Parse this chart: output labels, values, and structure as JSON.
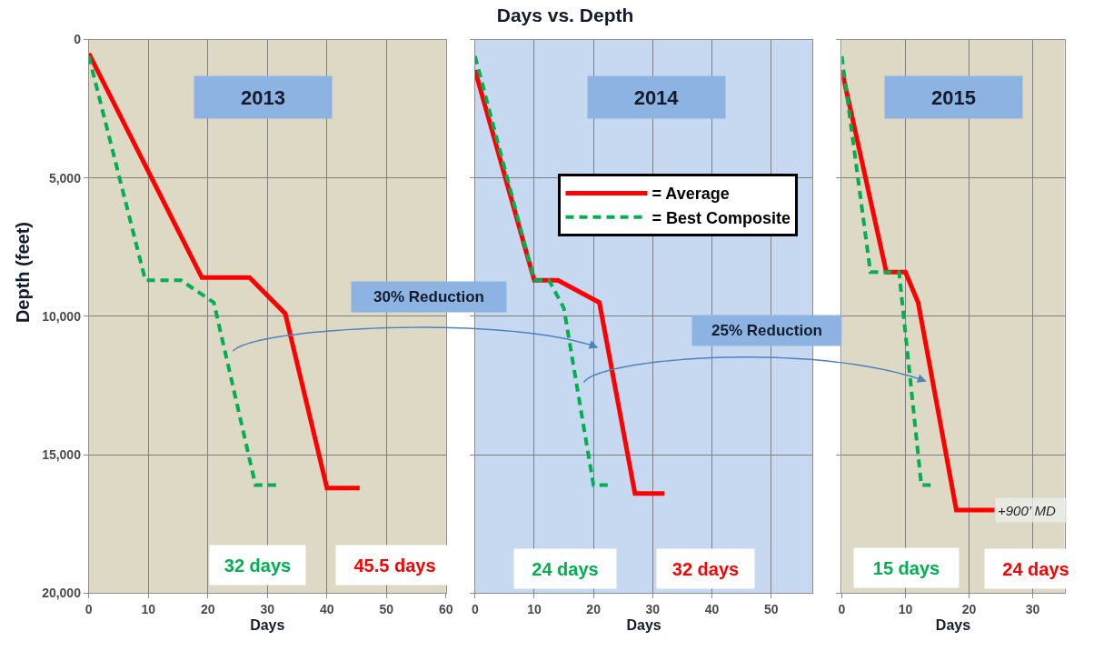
{
  "chart_data": [
    {
      "type": "line",
      "subtitle": "2013",
      "xlabel": "Days",
      "ylabel": "Depth (feet)",
      "xlim": [
        0,
        60
      ],
      "xticks": [
        0,
        10,
        20,
        30,
        40,
        50,
        60
      ],
      "ylim": [
        20000,
        0
      ],
      "yticks": [
        0,
        {
          "value": 5000,
          "label": "5,000"
        },
        {
          "value": 10000,
          "label": "10,000"
        },
        {
          "value": 15000,
          "label": "15,000"
        },
        {
          "value": 20000,
          "label": "20,000"
        }
      ],
      "grid": true,
      "series": [
        {
          "color": "#ff0000",
          "line_style": "solid",
          "x": [
            0,
            19,
            27,
            33,
            40,
            45.5
          ],
          "values": [
            500,
            8600,
            8600,
            9900,
            16200,
            16200
          ]
        },
        {
          "color": "#00b050",
          "line_style": "dashed",
          "x": [
            0,
            9.5,
            15.5,
            21,
            28,
            32
          ],
          "values": [
            600,
            8700,
            8700,
            9500,
            16100,
            16100
          ]
        }
      ],
      "annotations": [
        "32 days",
        "45.5 days"
      ]
    },
    {
      "type": "line",
      "title": "Days vs. Depth",
      "subtitle": "2014",
      "xlabel": "Days",
      "xlim": [
        0,
        57
      ],
      "xticks": [
        0,
        10,
        20,
        30,
        40,
        50
      ],
      "ylim": [
        20000,
        0
      ],
      "yticks": [
        0,
        5000,
        10000,
        15000,
        20000
      ],
      "tick_labels": "x",
      "grid": true,
      "legend": "top right",
      "series": [
        {
          "name": "= Average",
          "color": "#ff0000",
          "line_style": "solid",
          "x": [
            0,
            10,
            14,
            21,
            27,
            32
          ],
          "values": [
            1100,
            8700,
            8700,
            9500,
            16400,
            16400
          ]
        },
        {
          "name": "= Best Composite",
          "color": "#00b050",
          "line_style": "dashed",
          "x": [
            0,
            10,
            12.5,
            15,
            20,
            23
          ],
          "values": [
            600,
            8700,
            8700,
            9700,
            16100,
            16100
          ]
        }
      ],
      "annotations": [
        "30% Reduction",
        "24 days",
        "32 days"
      ]
    },
    {
      "type": "line",
      "subtitle": "2015",
      "xlabel": "Days",
      "xlim": [
        0,
        35
      ],
      "xticks": [
        0,
        10,
        20,
        30
      ],
      "ylim": [
        20000,
        0
      ],
      "yticks": [
        0,
        5000,
        10000,
        15000,
        20000
      ],
      "tick_labels": "x",
      "grid": true,
      "series": [
        {
          "color": "#ff0000",
          "line_style": "solid",
          "x": [
            0,
            7,
            10,
            12,
            18,
            24
          ],
          "values": [
            1100,
            8400,
            8400,
            9500,
            17000,
            17000
          ]
        },
        {
          "color": "#00b050",
          "line_style": "dashed",
          "x": [
            0,
            4.5,
            9,
            12.5,
            14.5
          ],
          "values": [
            600,
            8400,
            8400,
            16100,
            16100
          ]
        }
      ],
      "annotations": [
        "25% Reduction",
        "15 days",
        "24 days",
        {
          "text": "+900’ MD",
          "x": 24,
          "y": 17000
        }
      ]
    }
  ]
}
